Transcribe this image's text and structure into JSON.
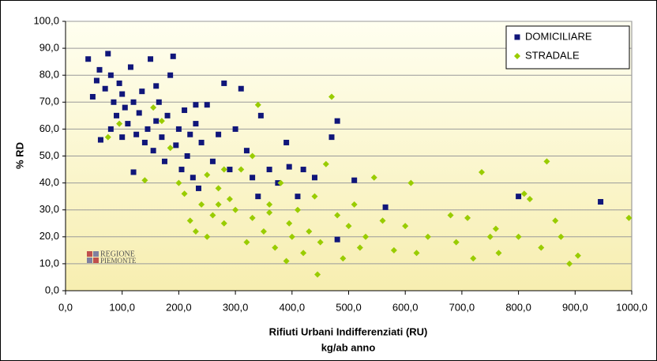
{
  "chart_data": {
    "type": "scatter",
    "ylabel": "% RD",
    "xlabel": [
      "Rifiuti Urbani Indifferenziati (RU)",
      "kg/ab anno"
    ],
    "xlim": [
      0,
      1000
    ],
    "xticks": [
      {
        "value": 0,
        "label": "0,0"
      },
      {
        "value": 100,
        "label": "100,0"
      },
      {
        "value": 200,
        "label": "200,0"
      },
      {
        "value": 300,
        "label": "300,0"
      },
      {
        "value": 400,
        "label": "400,0"
      },
      {
        "value": 500,
        "label": "500,0"
      },
      {
        "value": 600,
        "label": "600,0"
      },
      {
        "value": 700,
        "label": "700,0"
      },
      {
        "value": 800,
        "label": "800,0"
      },
      {
        "value": 900,
        "label": "900,0"
      },
      {
        "value": 1000,
        "label": "1000,0"
      }
    ],
    "ylim": [
      0,
      100
    ],
    "yticks": [
      {
        "value": 0,
        "label": "0,0"
      },
      {
        "value": 10,
        "label": "10,0"
      },
      {
        "value": 20,
        "label": "20,0"
      },
      {
        "value": 30,
        "label": "30,0"
      },
      {
        "value": 40,
        "label": "40,0"
      },
      {
        "value": 50,
        "label": "50,0"
      },
      {
        "value": 60,
        "label": "60,0"
      },
      {
        "value": 70,
        "label": "70,0"
      },
      {
        "value": 80,
        "label": "80,0"
      },
      {
        "value": 90,
        "label": "90,0"
      },
      {
        "value": 100,
        "label": "100,0"
      }
    ],
    "grid": true,
    "legend": "upper right",
    "series": [
      {
        "name": "DOMICILIARE",
        "color": "#10167a",
        "marker": "square",
        "x": [
          40,
          48,
          55,
          60,
          62,
          70,
          75,
          80,
          85,
          90,
          95,
          100,
          105,
          110,
          115,
          120,
          125,
          130,
          135,
          140,
          145,
          150,
          155,
          160,
          165,
          170,
          175,
          180,
          185,
          190,
          195,
          200,
          205,
          210,
          215,
          220,
          225,
          230,
          235,
          240,
          250,
          260,
          270,
          280,
          290,
          300,
          310,
          320,
          330,
          345,
          360,
          375,
          390,
          395,
          410,
          420,
          440,
          470,
          480,
          510,
          565,
          800,
          945,
          120,
          100,
          80,
          160,
          230,
          480,
          340
        ],
        "values": [
          86,
          72,
          78,
          82,
          56,
          75,
          88,
          80,
          70,
          65,
          77,
          73,
          68,
          62,
          83,
          70,
          58,
          66,
          74,
          55,
          60,
          86,
          52,
          63,
          70,
          57,
          48,
          65,
          80,
          87,
          54,
          60,
          45,
          67,
          50,
          58,
          42,
          62,
          38,
          55,
          69,
          48,
          58,
          77,
          45,
          60,
          75,
          52,
          42,
          65,
          45,
          40,
          55,
          46,
          35,
          45,
          42,
          57,
          63,
          41,
          31,
          35,
          33,
          44,
          57,
          60,
          76,
          69,
          19,
          35
        ]
      },
      {
        "name": "STRADALE",
        "color": "#99cc00",
        "marker": "diamond",
        "x": [
          75,
          95,
          140,
          155,
          170,
          185,
          200,
          210,
          220,
          230,
          240,
          250,
          260,
          270,
          280,
          290,
          300,
          310,
          320,
          330,
          340,
          350,
          360,
          370,
          380,
          390,
          395,
          400,
          410,
          420,
          430,
          440,
          445,
          450,
          460,
          470,
          480,
          490,
          500,
          510,
          520,
          530,
          545,
          560,
          580,
          600,
          610,
          620,
          640,
          680,
          690,
          710,
          720,
          735,
          750,
          760,
          765,
          800,
          810,
          820,
          840,
          850,
          865,
          875,
          890,
          905,
          995,
          330,
          250,
          280,
          360,
          270
        ],
        "values": [
          57,
          62,
          41,
          68,
          63,
          53,
          40,
          36,
          26,
          22,
          32,
          43,
          28,
          38,
          25,
          34,
          30,
          45,
          18,
          27,
          69,
          22,
          32,
          16,
          40,
          11,
          25,
          20,
          30,
          14,
          22,
          35,
          6,
          18,
          47,
          72,
          28,
          12,
          24,
          32,
          16,
          20,
          42,
          26,
          15,
          24,
          40,
          14,
          20,
          28,
          18,
          27,
          12,
          44,
          20,
          23,
          14,
          20,
          36,
          34,
          16,
          48,
          26,
          20,
          10,
          13,
          27,
          50,
          20,
          45,
          29,
          32
        ]
      }
    ]
  },
  "logo": [
    "REGIONE",
    "PIEMONTE"
  ]
}
